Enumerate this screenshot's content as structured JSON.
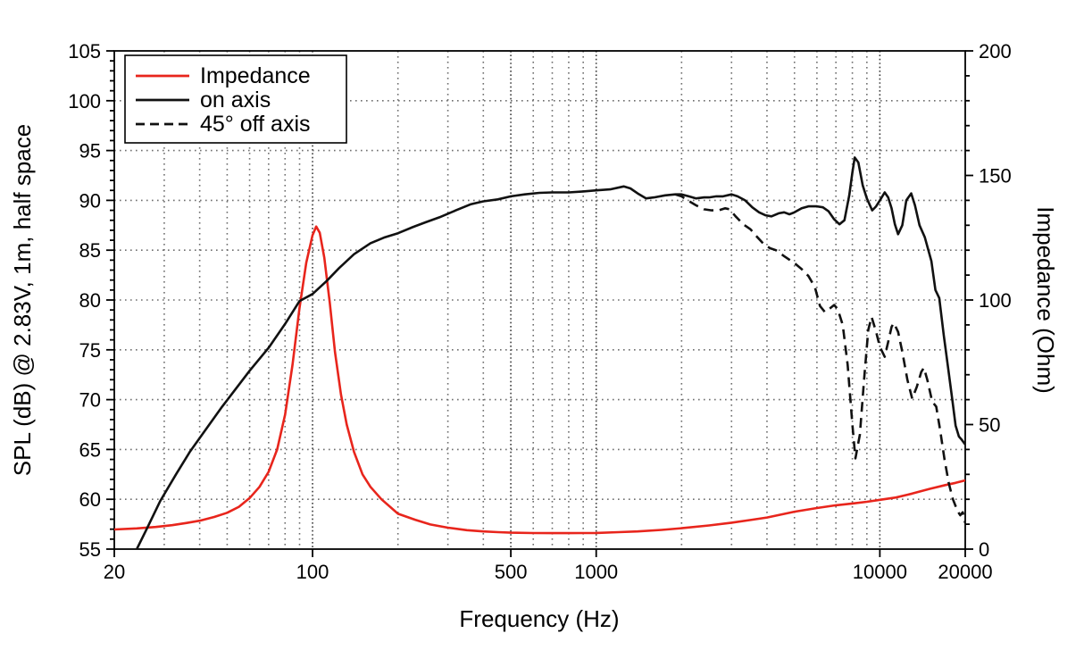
{
  "figure": {
    "background": "#ffffff",
    "axis_color": "#000000",
    "grid_minor_color": "#6e6e6e",
    "grid_major_color": "#3c3c3c",
    "spl_color": "#111111",
    "impedance_color": "#e8251c"
  },
  "legend": {
    "items": [
      {
        "label": "Impedance",
        "color": "#e8251c",
        "style": "solid"
      },
      {
        "label": "on axis",
        "color": "#111111",
        "style": "solid"
      },
      {
        "label": "45° off axis",
        "color": "#111111",
        "style": "dashed"
      }
    ]
  },
  "chart_data": {
    "type": "line",
    "xlabel": "Frequency (Hz)",
    "ylabel_left": "SPL (dB) @ 2.83V, 1m, half space",
    "ylabel_right": "Impedance (Ohm)",
    "x_scale": "log",
    "xlim": [
      20,
      20000
    ],
    "ylim_left": [
      55,
      105
    ],
    "ylim_right": [
      0,
      200
    ],
    "x_ticks_labeled": [
      20,
      100,
      500,
      1000,
      10000,
      20000
    ],
    "x_grid_major": [
      100,
      500,
      1000,
      10000
    ],
    "y_ticks_left_major": 5,
    "y_ticks_left_minor": 1,
    "y_ticks_right_major": 50,
    "y_ticks_right_minor": 10,
    "grid": "dotted: log minor verticals, 5 dB horizontals",
    "legend_position": "upper-left",
    "series": [
      {
        "name": "Impedance",
        "axis": "right",
        "unit": "Ohm",
        "color": "#e8251c",
        "style": "solid",
        "points": [
          [
            20,
            7.9
          ],
          [
            24,
            8.3
          ],
          [
            28,
            8.9
          ],
          [
            32,
            9.6
          ],
          [
            36,
            10.5
          ],
          [
            40,
            11.4
          ],
          [
            45,
            12.9
          ],
          [
            50,
            14.6
          ],
          [
            55,
            17
          ],
          [
            60,
            20.5
          ],
          [
            65,
            25
          ],
          [
            70,
            31
          ],
          [
            75,
            40
          ],
          [
            80,
            54
          ],
          [
            85,
            74
          ],
          [
            90,
            97
          ],
          [
            95,
            115
          ],
          [
            100,
            126
          ],
          [
            103,
            129.5
          ],
          [
            106,
            127
          ],
          [
            110,
            117
          ],
          [
            115,
            99
          ],
          [
            120,
            79
          ],
          [
            126,
            62
          ],
          [
            132,
            50
          ],
          [
            140,
            39
          ],
          [
            150,
            30
          ],
          [
            160,
            25
          ],
          [
            175,
            20
          ],
          [
            200,
            14.2
          ],
          [
            230,
            11.8
          ],
          [
            260,
            9.9
          ],
          [
            300,
            8.6
          ],
          [
            350,
            7.6
          ],
          [
            400,
            7.1
          ],
          [
            450,
            6.8
          ],
          [
            500,
            6.6
          ],
          [
            600,
            6.45
          ],
          [
            700,
            6.4
          ],
          [
            800,
            6.4
          ],
          [
            900,
            6.45
          ],
          [
            1000,
            6.5
          ],
          [
            1200,
            6.8
          ],
          [
            1400,
            7.1
          ],
          [
            1700,
            7.7
          ],
          [
            2000,
            8.4
          ],
          [
            2500,
            9.5
          ],
          [
            3000,
            10.6
          ],
          [
            3500,
            11.7
          ],
          [
            4000,
            12.7
          ],
          [
            5000,
            15.0
          ],
          [
            6000,
            16.5
          ],
          [
            7000,
            17.6
          ],
          [
            8000,
            18.3
          ],
          [
            9000,
            19.0
          ],
          [
            10000,
            19.8
          ],
          [
            11400,
            20.7
          ],
          [
            13000,
            22.3
          ],
          [
            15000,
            24.2
          ],
          [
            17000,
            25.7
          ],
          [
            18500,
            26.6
          ],
          [
            20000,
            27.6
          ]
        ]
      },
      {
        "name": "45° off axis",
        "axis": "left",
        "unit": "dB",
        "color": "#111111",
        "style": "dashed",
        "points": [
          [
            1900,
            90.6
          ],
          [
            2000,
            90.4
          ],
          [
            2100,
            90.0
          ],
          [
            2250,
            89.5
          ],
          [
            2400,
            89.1
          ],
          [
            2550,
            89.0
          ],
          [
            2700,
            89.0
          ],
          [
            2850,
            89.2
          ],
          [
            2950,
            89.1
          ],
          [
            3100,
            88.4
          ],
          [
            3300,
            87.6
          ],
          [
            3500,
            87.1
          ],
          [
            3700,
            86.3
          ],
          [
            3900,
            85.6
          ],
          [
            4100,
            85.2
          ],
          [
            4300,
            85.0
          ],
          [
            4600,
            84.4
          ],
          [
            5000,
            83.7
          ],
          [
            5300,
            83.1
          ],
          [
            5600,
            82.4
          ],
          [
            5900,
            81.3
          ],
          [
            6150,
            79.4
          ],
          [
            6400,
            78.8
          ],
          [
            6700,
            79.2
          ],
          [
            6900,
            79.5
          ],
          [
            7100,
            79.1
          ],
          [
            7400,
            77.5
          ],
          [
            7700,
            73.5
          ],
          [
            8000,
            67.5
          ],
          [
            8200,
            64.1
          ],
          [
            8500,
            66.5
          ],
          [
            8800,
            72.0
          ],
          [
            9100,
            77.0
          ],
          [
            9350,
            78.3
          ],
          [
            9700,
            76.8
          ],
          [
            10000,
            75.3
          ],
          [
            10400,
            74.3
          ],
          [
            10700,
            75.8
          ],
          [
            11000,
            77.3
          ],
          [
            11200,
            77.7
          ],
          [
            11600,
            76.8
          ],
          [
            12000,
            74.8
          ],
          [
            12500,
            72.0
          ],
          [
            13000,
            70.1
          ],
          [
            13500,
            71.3
          ],
          [
            14000,
            72.8
          ],
          [
            14300,
            73.2
          ],
          [
            14700,
            72.0
          ],
          [
            15300,
            69.8
          ],
          [
            15800,
            69.3
          ],
          [
            16300,
            67.0
          ],
          [
            16900,
            64.0
          ],
          [
            17500,
            61.6
          ],
          [
            18100,
            60.0
          ],
          [
            18800,
            58.8
          ],
          [
            19200,
            58.4
          ],
          [
            19600,
            58.7
          ],
          [
            20000,
            57.6
          ]
        ]
      },
      {
        "name": "on axis",
        "axis": "left",
        "unit": "dB",
        "color": "#111111",
        "style": "solid",
        "points": [
          [
            22,
            52.5
          ],
          [
            24,
            55
          ],
          [
            26,
            57
          ],
          [
            29,
            59.8
          ],
          [
            33,
            62.5
          ],
          [
            37,
            64.8
          ],
          [
            42,
            67
          ],
          [
            48,
            69.3
          ],
          [
            53,
            70.9
          ],
          [
            60,
            72.9
          ],
          [
            70,
            75.2
          ],
          [
            80,
            77.6
          ],
          [
            90,
            79.9
          ],
          [
            100,
            80.6
          ],
          [
            112,
            81.9
          ],
          [
            124,
            83.2
          ],
          [
            140,
            84.6
          ],
          [
            160,
            85.7
          ],
          [
            180,
            86.3
          ],
          [
            200,
            86.7
          ],
          [
            225,
            87.3
          ],
          [
            250,
            87.8
          ],
          [
            280,
            88.3
          ],
          [
            320,
            89.0
          ],
          [
            360,
            89.6
          ],
          [
            400,
            89.9
          ],
          [
            450,
            90.1
          ],
          [
            500,
            90.4
          ],
          [
            560,
            90.6
          ],
          [
            630,
            90.75
          ],
          [
            700,
            90.8
          ],
          [
            800,
            90.8
          ],
          [
            900,
            90.9
          ],
          [
            1000,
            91.0
          ],
          [
            1120,
            91.1
          ],
          [
            1250,
            91.4
          ],
          [
            1320,
            91.2
          ],
          [
            1400,
            90.7
          ],
          [
            1500,
            90.2
          ],
          [
            1600,
            90.3
          ],
          [
            1750,
            90.5
          ],
          [
            1900,
            90.6
          ],
          [
            2000,
            90.6
          ],
          [
            2120,
            90.4
          ],
          [
            2250,
            90.2
          ],
          [
            2400,
            90.3
          ],
          [
            2500,
            90.3
          ],
          [
            2650,
            90.4
          ],
          [
            2800,
            90.4
          ],
          [
            3000,
            90.6
          ],
          [
            3150,
            90.4
          ],
          [
            3350,
            90.0
          ],
          [
            3550,
            89.3
          ],
          [
            3750,
            88.8
          ],
          [
            3950,
            88.5
          ],
          [
            4150,
            88.4
          ],
          [
            4400,
            88.7
          ],
          [
            4600,
            88.8
          ],
          [
            4800,
            88.6
          ],
          [
            5000,
            88.8
          ],
          [
            5300,
            89.2
          ],
          [
            5600,
            89.4
          ],
          [
            6000,
            89.4
          ],
          [
            6300,
            89.3
          ],
          [
            6600,
            88.9
          ],
          [
            6900,
            88.1
          ],
          [
            7200,
            87.6
          ],
          [
            7500,
            88.0
          ],
          [
            7800,
            90.5
          ],
          [
            8000,
            92.8
          ],
          [
            8150,
            94.3
          ],
          [
            8400,
            93.8
          ],
          [
            8700,
            91.5
          ],
          [
            9000,
            90.2
          ],
          [
            9400,
            89.0
          ],
          [
            9700,
            89.4
          ],
          [
            10000,
            90.0
          ],
          [
            10400,
            90.8
          ],
          [
            10700,
            90.3
          ],
          [
            11000,
            89.2
          ],
          [
            11300,
            87.6
          ],
          [
            11600,
            86.6
          ],
          [
            12000,
            87.5
          ],
          [
            12400,
            90.0
          ],
          [
            12900,
            90.7
          ],
          [
            13300,
            89.5
          ],
          [
            13800,
            87.5
          ],
          [
            14400,
            86.3
          ],
          [
            15200,
            83.9
          ],
          [
            15700,
            81.0
          ],
          [
            16200,
            80.2
          ],
          [
            16800,
            76.5
          ],
          [
            17400,
            73.2
          ],
          [
            18000,
            70.0
          ],
          [
            18500,
            67.4
          ],
          [
            19000,
            66.3
          ],
          [
            19400,
            66.0
          ],
          [
            20000,
            65.5
          ]
        ]
      }
    ]
  }
}
